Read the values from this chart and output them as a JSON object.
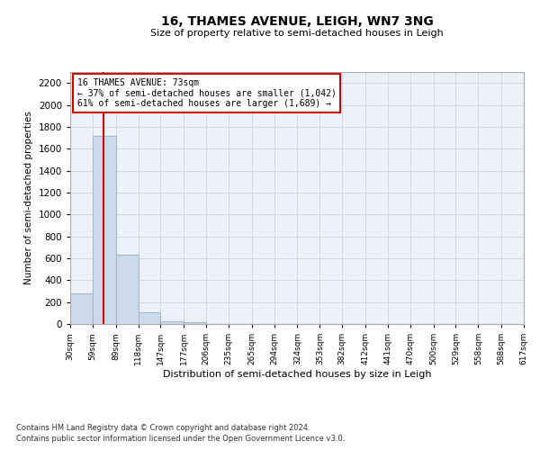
{
  "title": "16, THAMES AVENUE, LEIGH, WN7 3NG",
  "subtitle": "Size of property relative to semi-detached houses in Leigh",
  "xlabel": "Distribution of semi-detached houses by size in Leigh",
  "ylabel": "Number of semi-detached properties",
  "footnote1": "Contains HM Land Registry data © Crown copyright and database right 2024.",
  "footnote2": "Contains public sector information licensed under the Open Government Licence v3.0.",
  "bins": [
    30,
    59,
    89,
    118,
    147,
    177,
    206,
    235,
    265,
    294,
    324,
    353,
    382,
    412,
    441,
    470,
    500,
    529,
    558,
    588,
    617
  ],
  "values": [
    280,
    1720,
    630,
    105,
    25,
    15,
    0,
    0,
    0,
    0,
    0,
    0,
    0,
    0,
    0,
    0,
    0,
    0,
    0,
    0
  ],
  "bar_color": "#ccd9e8",
  "bar_edge_color": "#a0b8d0",
  "property_size": 73,
  "red_line_color": "#cc0000",
  "annotation_box_color": "#ffffff",
  "annotation_border_color": "#cc0000",
  "annotation_text1": "16 THAMES AVENUE: 73sqm",
  "annotation_text2": "← 37% of semi-detached houses are smaller (1,042)",
  "annotation_text3": "61% of semi-detached houses are larger (1,689) →",
  "ylim": [
    0,
    2300
  ],
  "yticks": [
    0,
    200,
    400,
    600,
    800,
    1000,
    1200,
    1400,
    1600,
    1800,
    2000,
    2200
  ],
  "grid_color": "#d0d8e4",
  "background_color": "#eef2f8",
  "tick_labels": [
    "30sqm",
    "59sqm",
    "89sqm",
    "118sqm",
    "147sqm",
    "177sqm",
    "206sqm",
    "235sqm",
    "265sqm",
    "294sqm",
    "324sqm",
    "353sqm",
    "382sqm",
    "412sqm",
    "441sqm",
    "470sqm",
    "500sqm",
    "529sqm",
    "558sqm",
    "588sqm",
    "617sqm"
  ]
}
